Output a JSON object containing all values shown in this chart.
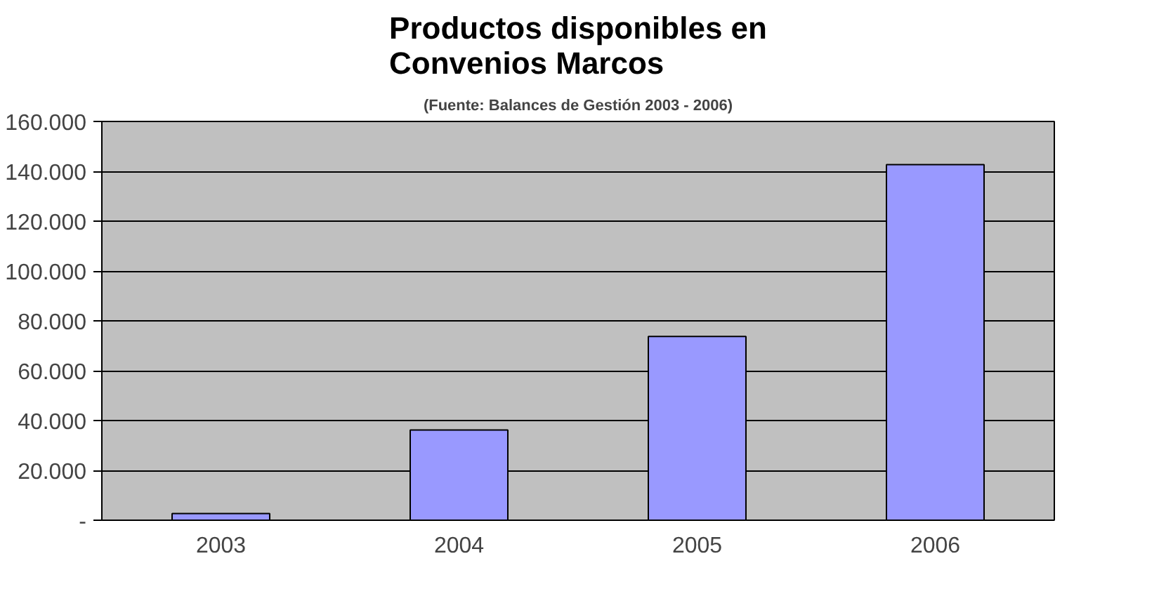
{
  "chart_data": {
    "type": "bar",
    "title": "Productos disponibles en\nConvenios Marcos",
    "subtitle": "(Fuente: Balances de Gestión 2003 - 2006)",
    "categories": [
      "2003",
      "2004",
      "2005",
      "2006"
    ],
    "values": [
      2700,
      36200,
      73700,
      142700
    ],
    "color": "#9999ff",
    "ylim": [
      0,
      160000
    ],
    "yticks": [
      {
        "value": 0,
        "label": "-"
      },
      {
        "value": 20000,
        "label": "20.000"
      },
      {
        "value": 40000,
        "label": "40.000"
      },
      {
        "value": 60000,
        "label": "60.000"
      },
      {
        "value": 80000,
        "label": "80.000"
      },
      {
        "value": 100000,
        "label": "100.000"
      },
      {
        "value": 120000,
        "label": "120.000"
      },
      {
        "value": 140000,
        "label": "140.000"
      },
      {
        "value": 160000,
        "label": "160.000"
      }
    ],
    "grid": "y"
  }
}
